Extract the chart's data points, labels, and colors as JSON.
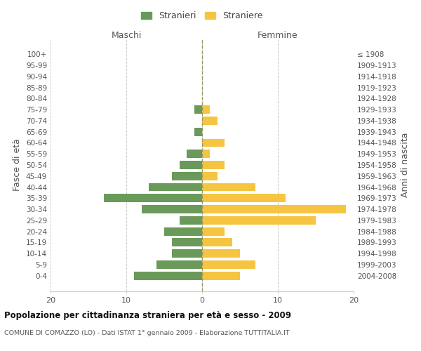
{
  "age_groups": [
    "0-4",
    "5-9",
    "10-14",
    "15-19",
    "20-24",
    "25-29",
    "30-34",
    "35-39",
    "40-44",
    "45-49",
    "50-54",
    "55-59",
    "60-64",
    "65-69",
    "70-74",
    "75-79",
    "80-84",
    "85-89",
    "90-94",
    "95-99",
    "100+"
  ],
  "birth_years": [
    "2004-2008",
    "1999-2003",
    "1994-1998",
    "1989-1993",
    "1984-1988",
    "1979-1983",
    "1974-1978",
    "1969-1973",
    "1964-1968",
    "1959-1963",
    "1954-1958",
    "1949-1953",
    "1944-1948",
    "1939-1943",
    "1934-1938",
    "1929-1933",
    "1924-1928",
    "1919-1923",
    "1914-1918",
    "1909-1913",
    "≤ 1908"
  ],
  "males": [
    9,
    6,
    4,
    4,
    5,
    3,
    8,
    13,
    7,
    4,
    3,
    2,
    0,
    1,
    0,
    1,
    0,
    0,
    0,
    0,
    0
  ],
  "females": [
    5,
    7,
    5,
    4,
    3,
    15,
    19,
    11,
    7,
    2,
    3,
    1,
    3,
    0,
    2,
    1,
    0,
    0,
    0,
    0,
    0
  ],
  "male_color": "#6a9a5a",
  "female_color": "#f5c542",
  "background_color": "#ffffff",
  "grid_color": "#cccccc",
  "title": "Popolazione per cittadinanza straniera per età e sesso - 2009",
  "subtitle": "COMUNE DI COMAZZO (LO) - Dati ISTAT 1° gennaio 2009 - Elaborazione TUTTITALIA.IT",
  "ylabel_left": "Fasce di età",
  "ylabel_right": "Anni di nascita",
  "legend_male": "Stranieri",
  "legend_female": "Straniere",
  "xlim": 20,
  "header_maschi": "Maschi",
  "header_femmine": "Femmine"
}
